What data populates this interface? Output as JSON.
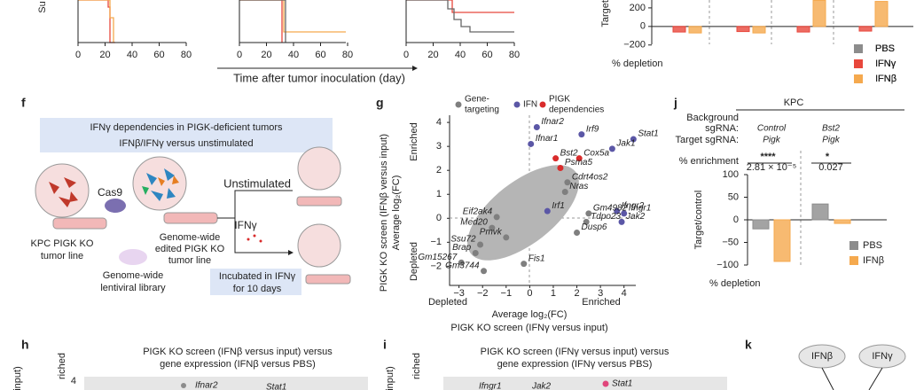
{
  "top": {
    "y_label_fragment": "Su",
    "xticks": [
      0,
      20,
      40,
      60,
      80
    ],
    "x_label": "Time after tumor inoculation (day)",
    "bars": {
      "y_label_fragment": "Target/co",
      "ylim": [
        -250,
        285
      ],
      "yticks": [
        200,
        0,
        {
          "value": -200,
          "label": "−200"
        }
      ],
      "footer": "% depletion",
      "series": [
        {
          "name": "PBS",
          "color": "#8c8c8c",
          "values": [
            0,
            0,
            0,
            0
          ]
        },
        {
          "name": "IFNγ",
          "color": "#e8473c",
          "values": [
            -60,
            -55,
            -60,
            -50
          ]
        },
        {
          "name": "IFNβ",
          "color": "#f5a94e",
          "values": [
            -70,
            -70,
            280,
            270
          ]
        }
      ]
    }
  },
  "f": {
    "label": "f",
    "box_title": [
      "IFNγ dependencies in PIGK-deficient tumors",
      "IFNβ/IFNγ versus unstimulated"
    ],
    "cas9": "Cas9",
    "unstimulated": "Unstimulated",
    "ifng": "IFNγ",
    "tumor_line": [
      "KPC PIGK KO",
      "tumor line"
    ],
    "edited": [
      "Genome-wide",
      "edited PIGK KO",
      "tumor line"
    ],
    "library": [
      "Genome-wide",
      "lentiviral library"
    ],
    "incubated": [
      "Incubated in IFNγ",
      "for 10 days"
    ]
  },
  "g": {
    "label": "g",
    "legend": [
      {
        "name": "Gene-targeting",
        "lines": [
          "Gene-",
          "targeting"
        ],
        "color": "#7f7f7f"
      },
      {
        "name": "IFN",
        "lines": [
          "IFN"
        ],
        "color": "#5b57a6"
      },
      {
        "name": "PIGK",
        "lines": [
          "PIGK",
          "dependencies"
        ],
        "color": "#d92b2b"
      }
    ],
    "y_label": [
      "PIGK KO screen (IFNβ versus input)",
      "Average log₂(FC)"
    ],
    "y_enriched": "Enriched",
    "y_depleted": "Depleted",
    "x_label": [
      "Average log₂(FC)",
      "PIGK KO screen (IFNγ versus input)"
    ],
    "x_depleted": "Depleted",
    "x_enriched": "Enriched",
    "xlim": [
      -3.4,
      4.5
    ],
    "ylim": [
      -2.8,
      4.3
    ],
    "xticks": [
      {
        "value": -3,
        "label": "−3"
      },
      {
        "value": -2,
        "label": "−2"
      },
      {
        "value": -1,
        "label": "−1"
      },
      0,
      1,
      2,
      3,
      4
    ],
    "yticks": [
      4,
      3,
      2,
      1,
      0,
      {
        "value": -1,
        "label": "−1"
      },
      {
        "value": -2,
        "label": "−2"
      }
    ],
    "points": [
      {
        "name": "Ifnar2",
        "group": 1,
        "x": 0.3,
        "y": 3.8
      },
      {
        "name": "Irf9",
        "group": 1,
        "x": 2.2,
        "y": 3.5
      },
      {
        "name": "Stat1",
        "group": 1,
        "x": 4.4,
        "y": 3.3
      },
      {
        "name": "Ifnar1",
        "group": 1,
        "x": 0.05,
        "y": 3.1
      },
      {
        "name": "Jak1",
        "group": 1,
        "x": 3.5,
        "y": 2.9
      },
      {
        "name": "Bst2",
        "group": 2,
        "x": 1.1,
        "y": 2.5
      },
      {
        "name": "Cox5a",
        "group": 2,
        "x": 2.1,
        "y": 2.5
      },
      {
        "name": "Psma5",
        "group": 2,
        "x": 1.3,
        "y": 2.1
      },
      {
        "name": "Cdrt4os2",
        "group": 0,
        "x": 1.6,
        "y": 1.5
      },
      {
        "name": "Nras",
        "group": 0,
        "x": 1.5,
        "y": 1.1
      },
      {
        "name": "Ifngr2",
        "group": 1,
        "x": 3.7,
        "y": 0.3
      },
      {
        "name": "Ifngr1",
        "group": 1,
        "x": 4.0,
        "y": 0.2
      },
      {
        "name": "Irf1",
        "group": 1,
        "x": 0.75,
        "y": 0.3
      },
      {
        "name": "Gm4982",
        "group": 0,
        "x": 2.5,
        "y": 0.2
      },
      {
        "name": "Jak2",
        "group": 1,
        "x": 3.9,
        "y": -0.15
      },
      {
        "name": "Tdpo23",
        "group": 0,
        "x": 2.4,
        "y": -0.15
      },
      {
        "name": "Dusp6",
        "group": 0,
        "x": 2.0,
        "y": -0.6
      },
      {
        "name": "Eif2ak4",
        "group": 0,
        "x": -1.4,
        "y": 0.05
      },
      {
        "name": "Med20",
        "group": 0,
        "x": -1.6,
        "y": -0.4
      },
      {
        "name": "Pmvk",
        "group": 0,
        "x": -1.0,
        "y": -0.8
      },
      {
        "name": "Ssu72",
        "group": 0,
        "x": -2.1,
        "y": -1.1
      },
      {
        "name": "Brap",
        "group": 0,
        "x": -2.3,
        "y": -1.45
      },
      {
        "name": "Gm15267",
        "group": 0,
        "x": -2.9,
        "y": -1.85
      },
      {
        "name": "Gm3744",
        "group": 0,
        "x": -1.95,
        "y": -2.2
      },
      {
        "name": "Fis1",
        "group": 0,
        "x": -0.25,
        "y": -1.9
      }
    ]
  },
  "j": {
    "label": "j",
    "title": "KPC",
    "row_labels": [
      "Background",
      "sgRNA:",
      "Target sgRNA:",
      "% enrichment"
    ],
    "groups": [
      {
        "background": "Control",
        "target": "Pigk",
        "stars": "****",
        "p": "2.81 × 10⁻⁵"
      },
      {
        "background": "Bst2",
        "target": "Pigk",
        "stars": "*",
        "p": "0.027"
      }
    ],
    "ylim": [
      -100,
      100
    ],
    "yticks": [
      100,
      50,
      0,
      {
        "value": -50,
        "label": "−50"
      },
      {
        "value": -100,
        "label": "−100"
      }
    ],
    "y_label": "Target/control",
    "footer": "% depletion",
    "series": [
      {
        "name": "PBS",
        "color": "#8c8c8c",
        "values": [
          -20,
          35
        ]
      },
      {
        "name": "IFNβ",
        "color": "#f5a94e",
        "values": [
          -92,
          -8
        ]
      }
    ]
  },
  "h": {
    "label": "h",
    "title": [
      "PIGK KO screen (IFNβ versus input) versus",
      "gene expression (IFNβ versus PBS)"
    ],
    "y_fragments": [
      "input)",
      "riched"
    ],
    "ytick": "4",
    "genes": [
      "Ifnar2",
      "Stat1"
    ]
  },
  "i": {
    "label": "i",
    "title": [
      "PIGK KO screen (IFNγ versus input) versus",
      "gene expression (IFNγ versus PBS)"
    ],
    "y_fragments": [
      "input)",
      "riched"
    ],
    "genes": [
      "Ifngr1",
      "Jak2",
      "Stat1"
    ]
  },
  "k": {
    "label": "k",
    "nodes": [
      "IFNβ",
      "IFNγ"
    ]
  }
}
